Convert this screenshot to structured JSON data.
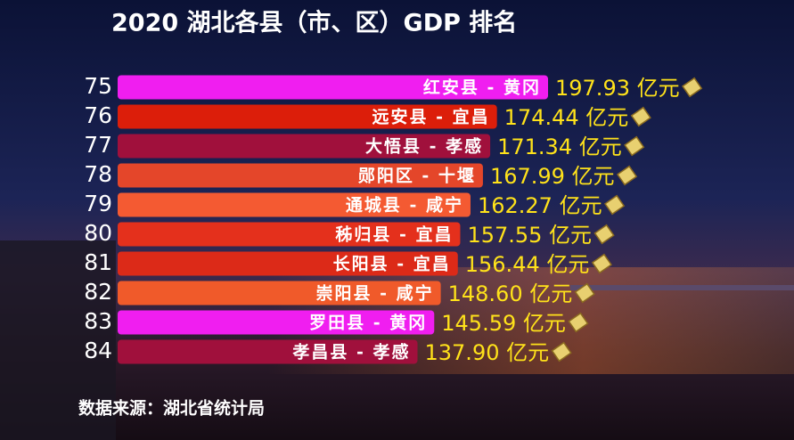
{
  "chart_data": {
    "type": "bar",
    "orientation": "horizontal",
    "title": "2020 湖北各县（市、区）GDP 排名",
    "ranks": [
      75,
      76,
      77,
      78,
      79,
      80,
      81,
      82,
      83,
      84
    ],
    "categories": [
      "红安县 - 黄冈",
      "远安县 - 宜昌",
      "大悟县 - 孝感",
      "郧阳区 - 十堰",
      "通城县 - 咸宁",
      "秭归县 - 宜昌",
      "长阳县 - 宜昌",
      "崇阳县 - 咸宁",
      "罗田县 - 黄冈",
      "孝昌县 - 孝感"
    ],
    "values": [
      197.93,
      174.44,
      171.34,
      167.99,
      162.27,
      157.55,
      156.44,
      148.6,
      145.59,
      137.9
    ],
    "value_labels": [
      "197.93 亿元",
      "174.44 亿元",
      "171.34 亿元",
      "167.99 亿元",
      "162.27 亿元",
      "157.55 亿元",
      "156.44 亿元",
      "148.60 亿元",
      "145.59 亿元",
      "137.90 亿元"
    ],
    "colors": [
      "#f01ef0",
      "#dc1e0a",
      "#a0103c",
      "#e4462a",
      "#f45a32",
      "#e4301c",
      "#dc2a18",
      "#f05a2a",
      "#f01ef0",
      "#a0103c"
    ],
    "source": "数据来源：湖北省统计局"
  }
}
